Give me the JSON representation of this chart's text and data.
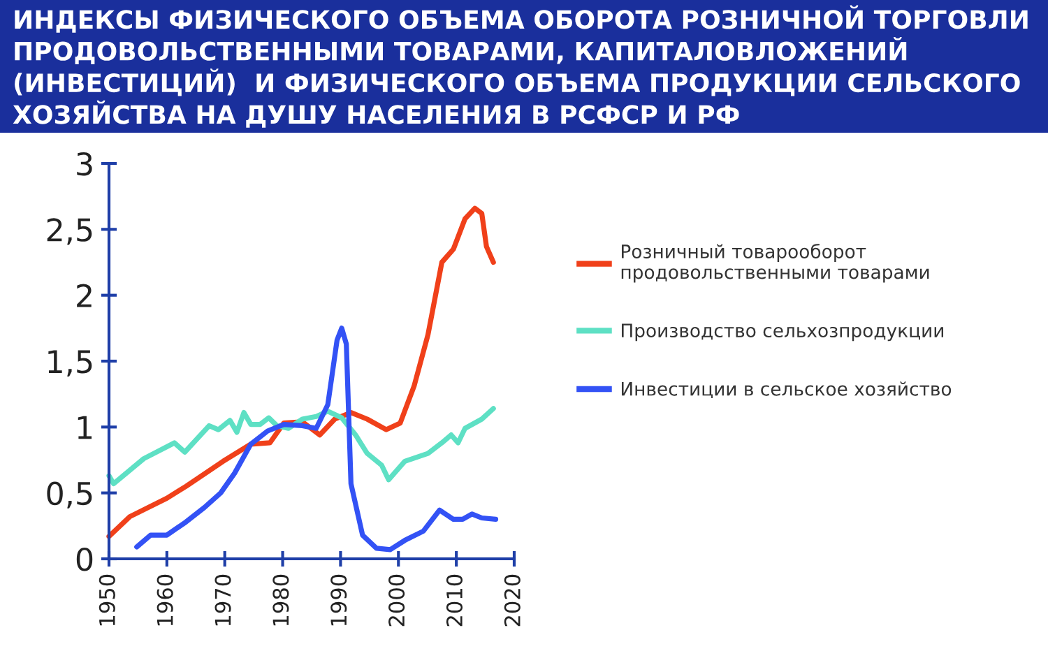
{
  "chart_data": {
    "type": "line",
    "title": "ИНДЕКСЫ ФИЗИЧЕСКОГО ОБЪЕМА ОБОРОТА РОЗНИЧНОЙ ТОРГОВЛИ\nПРОДОВОЛЬСТВЕННЫМИ ТОВАРАМИ, КАПИТАЛОВЛОЖЕНИЙ\n(ИНВЕСТИЦИЙ)  И ФИЗИЧЕСКОГО ОБЪЕМА ПРОДУКЦИИ СЕЛЬСКОГО\nХОЗЯЙСТВА НА ДУШУ НАСЕЛЕНИЯ В РСФСР И РФ",
    "xlim": [
      1950,
      2020
    ],
    "xticks": [
      1950,
      1960,
      1970,
      1980,
      1990,
      2000,
      2010,
      2020
    ],
    "ylim": [
      0,
      3
    ],
    "yticks": [
      0,
      {
        "value": 0.5,
        "label": "0,5"
      },
      1,
      {
        "value": 1.5,
        "label": "1,5"
      },
      2,
      {
        "value": 2.5,
        "label": "2,5"
      },
      3
    ],
    "grid": false,
    "legend": "right",
    "marker": "none",
    "line_style": "solid",
    "series": [
      {
        "name": "Розничный товарооборот\nпродовольственными товарами",
        "color": "#f0401a",
        "x": [
          1950,
          1953.6,
          1960,
          1963.3,
          1969.7,
          1974.5,
          1977.8,
          1980.2,
          1983.4,
          1986.4,
          1989,
          1991.8,
          1994.6,
          1997.9,
          2000.3,
          2002.7,
          2005.1,
          2007.5,
          2009.5,
          2011.5,
          2013.2,
          2014.4,
          2015.2,
          2016.4
        ],
        "values": [
          0.17,
          0.32,
          0.46,
          0.55,
          0.74,
          0.87,
          0.88,
          1.03,
          1.04,
          0.94,
          1.06,
          1.11,
          1.06,
          0.98,
          1.03,
          1.31,
          1.7,
          2.25,
          2.35,
          2.58,
          2.66,
          2.62,
          2.37,
          2.25
        ]
      },
      {
        "name": "Производство сельхозпродукции",
        "color": "#5ee0c4",
        "x": [
          1950,
          1950.8,
          1956,
          1961.3,
          1963.1,
          1967.3,
          1968.9,
          1970.9,
          1972.1,
          1973.3,
          1974.5,
          1976.1,
          1977.6,
          1979,
          1981,
          1983.4,
          1985.8,
          1987.8,
          1990.2,
          1992.6,
          1994.6,
          1997.1,
          1998.3,
          2001.1,
          2005.1,
          2007.5,
          2009.1,
          2010.3,
          2011.5,
          2014.4,
          2016.4
        ],
        "values": [
          0.63,
          0.57,
          0.76,
          0.88,
          0.81,
          1.01,
          0.98,
          1.05,
          0.96,
          1.11,
          1.02,
          1.02,
          1.07,
          1.01,
          0.99,
          1.06,
          1.08,
          1.12,
          1.07,
          0.94,
          0.8,
          0.71,
          0.6,
          0.74,
          0.8,
          0.88,
          0.94,
          0.88,
          0.99,
          1.06,
          1.14
        ]
      },
      {
        "name": "Инвестиции в сельское хозяйство",
        "color": "#3352f5",
        "x": [
          1954.8,
          1957.2,
          1960,
          1963.3,
          1966.5,
          1969.3,
          1971.7,
          1974.5,
          1977.4,
          1980.2,
          1983.4,
          1985.8,
          1987.8,
          1989.4,
          1990.2,
          1991,
          1991.8,
          1993.8,
          1996.2,
          1998.6,
          2001.1,
          2004.3,
          2007.1,
          2009.5,
          2011.1,
          2012.7,
          2014.4,
          2016.8
        ],
        "values": [
          0.09,
          0.18,
          0.18,
          0.28,
          0.39,
          0.5,
          0.65,
          0.87,
          0.97,
          1.02,
          1.01,
          0.99,
          1.17,
          1.66,
          1.75,
          1.63,
          0.57,
          0.18,
          0.08,
          0.07,
          0.14,
          0.21,
          0.37,
          0.3,
          0.3,
          0.34,
          0.31,
          0.3
        ]
      }
    ]
  }
}
